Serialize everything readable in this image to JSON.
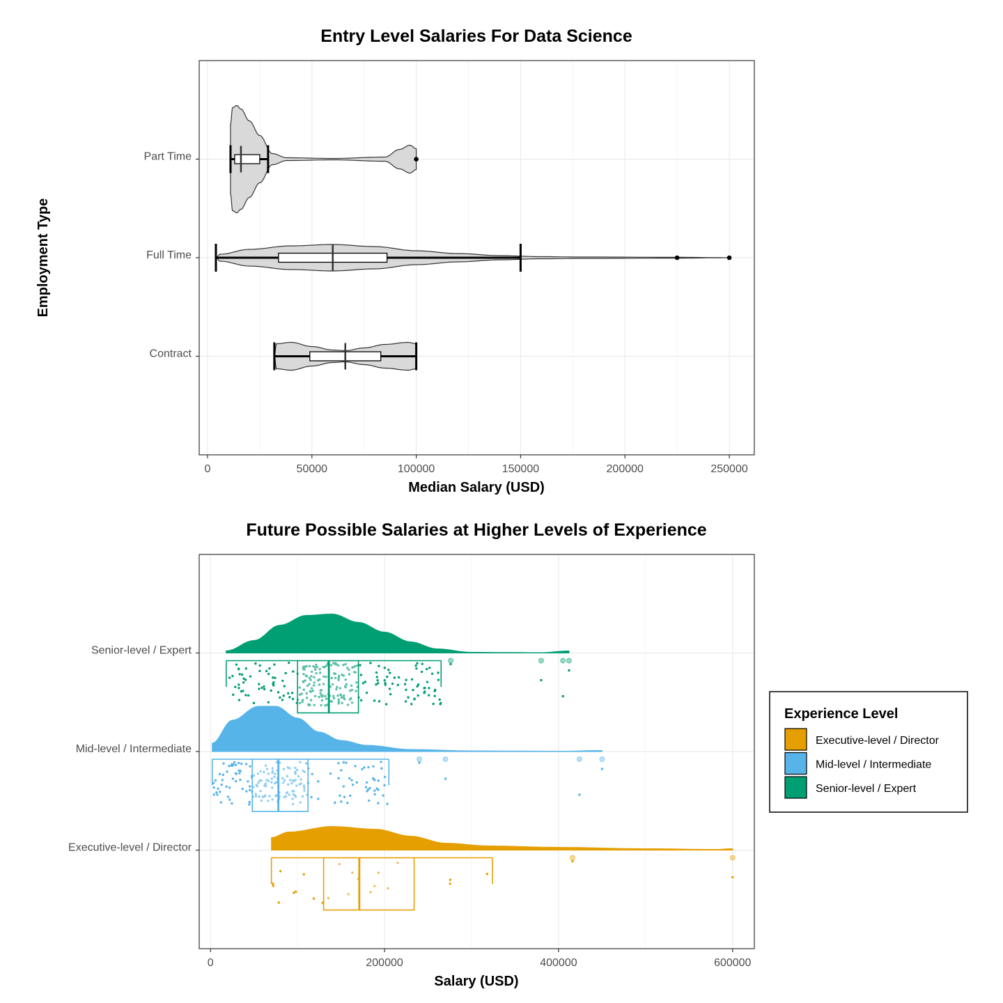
{
  "y_axis_title": "Employment Type",
  "chart_data": [
    {
      "type": "violin",
      "title": "Entry Level Salaries For Data Science",
      "xlabel": "Median Salary (USD)",
      "ylabel": "Employment Type",
      "xlim": [
        -4000,
        262000
      ],
      "xticks": [
        0,
        50000,
        100000,
        150000,
        200000,
        250000
      ],
      "xtick_labels": [
        "0",
        "50000",
        "100000",
        "150000",
        "200000",
        "250000"
      ],
      "grid": true,
      "violin_fill": "#d9d9d9",
      "box_fill": "#ffffff",
      "categories": [
        "Contract",
        "Full Time",
        "Part Time"
      ],
      "series": [
        {
          "category": "Contract",
          "min": 32000,
          "q1": 49000,
          "median": 66000,
          "q3": 83000,
          "max": 100000,
          "outliers": []
        },
        {
          "category": "Full Time",
          "min": 4000,
          "q1": 34000,
          "median": 60000,
          "q3": 86000,
          "max": 150000,
          "outliers": [
            225000,
            250000
          ]
        },
        {
          "category": "Part Time",
          "min": 11000,
          "q1": 13000,
          "median": 16000,
          "q3": 25000,
          "max": 29000,
          "outliers": [
            100000
          ]
        }
      ]
    },
    {
      "type": "raincloud",
      "title": "Future Possible Salaries at Higher Levels of Experience",
      "xlabel": "Salary (USD)",
      "ylabel": "",
      "xlim": [
        -13000,
        625000
      ],
      "xticks": [
        0,
        200000,
        400000,
        600000
      ],
      "xtick_labels": [
        "0",
        "200000",
        "400000",
        "600000"
      ],
      "grid": true,
      "categories": [
        "Executive-level / Director",
        "Mid-level / Intermediate",
        "Senior-level / Expert"
      ],
      "legend": {
        "title": "Experience Level",
        "position": "right",
        "entries": [
          "Executive-level / Director",
          "Mid-level / Intermediate",
          "Senior-level / Expert"
        ]
      },
      "series": [
        {
          "name": "Executive-level / Director",
          "color": "#E69F00",
          "min": 70000,
          "q1": 130000,
          "median": 171000,
          "q3": 234000,
          "max": 324000,
          "outliers": [
            416000,
            600000
          ]
        },
        {
          "name": "Mid-level / Intermediate",
          "color": "#56B4E9",
          "min": 2000,
          "q1": 48000,
          "median": 78000,
          "q3": 112000,
          "max": 205000,
          "outliers": [
            240000,
            270000,
            424000,
            450000
          ]
        },
        {
          "name": "Senior-level / Expert",
          "color": "#009E73",
          "min": 18000,
          "q1": 100000,
          "median": 136000,
          "q3": 170000,
          "max": 265000,
          "outliers": [
            276000,
            380000,
            405000,
            412000
          ]
        }
      ]
    }
  ]
}
